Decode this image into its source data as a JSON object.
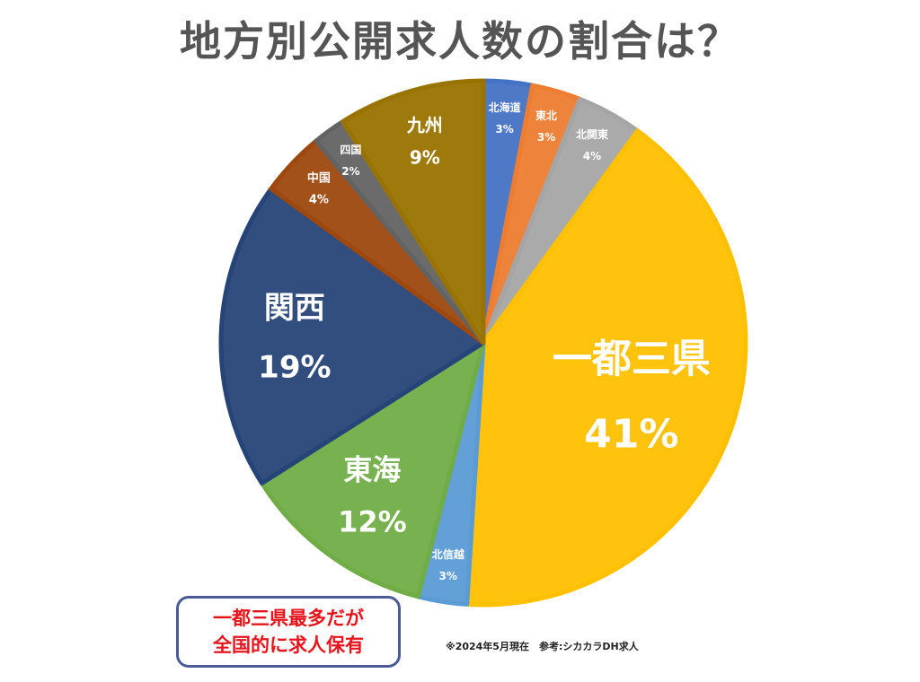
{
  "title": "地方別公開求人数の割合は？",
  "note": {
    "line1": "一都三県最多だが",
    "line2": "全国的に求人保有"
  },
  "source": "※2024年5月現在　参考:シカカラDH求人",
  "chart_data": {
    "type": "pie",
    "title": "地方別公開求人数の割合は？",
    "unit": "%",
    "start": "12 o'clock",
    "direction": "clockwise",
    "slices": [
      {
        "label": "北海道",
        "value": 3,
        "value_label": "3%",
        "color": "#4472c4"
      },
      {
        "label": "東北",
        "value": 3,
        "value_label": "3%",
        "color": "#ed7d31"
      },
      {
        "label": "北関東",
        "value": 4,
        "value_label": "4%",
        "color": "#a5a5a5"
      },
      {
        "label": "一都三県",
        "value": 41,
        "value_label": "41%",
        "color": "#ffc000"
      },
      {
        "label": "北信越",
        "value": 3,
        "value_label": "3%",
        "color": "#5b9bd5"
      },
      {
        "label": "東海",
        "value": 12,
        "value_label": "12%",
        "color": "#70ad47"
      },
      {
        "label": "関西",
        "value": 19,
        "value_label": "19%",
        "color": "#264478"
      },
      {
        "label": "中国",
        "value": 4,
        "value_label": "4%",
        "color": "#9e480e"
      },
      {
        "label": "四国",
        "value": 2,
        "value_label": "2%",
        "color": "#636363"
      },
      {
        "label": "九州",
        "value": 9,
        "value_label": "9%",
        "color": "#997300"
      }
    ]
  }
}
